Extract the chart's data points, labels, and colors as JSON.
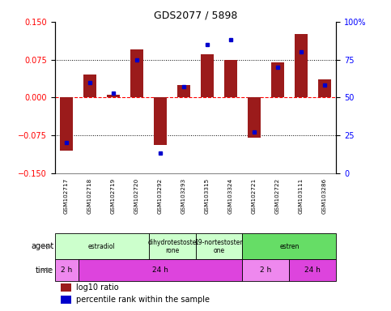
{
  "title": "GDS2077 / 5898",
  "samples": [
    "GSM102717",
    "GSM102718",
    "GSM102719",
    "GSM102720",
    "GSM103292",
    "GSM103293",
    "GSM103315",
    "GSM103324",
    "GSM102721",
    "GSM102722",
    "GSM103111",
    "GSM103286"
  ],
  "log10_ratio": [
    -0.105,
    0.045,
    0.005,
    0.095,
    -0.095,
    0.025,
    0.085,
    0.075,
    -0.08,
    0.07,
    0.125,
    0.035
  ],
  "percentile_rank": [
    20,
    60,
    53,
    75,
    13,
    57,
    85,
    88,
    27,
    70,
    80,
    58
  ],
  "ylim_left": [
    -0.15,
    0.15
  ],
  "ylim_right": [
    0,
    100
  ],
  "yticks_left": [
    -0.15,
    -0.075,
    0,
    0.075,
    0.15
  ],
  "yticks_right": [
    0,
    25,
    50,
    75,
    100
  ],
  "bar_color": "#9B1B1B",
  "dot_color": "#0000CC",
  "agent_data": [
    {
      "label": "estradiol",
      "color": "#CCFFCC",
      "start": 0,
      "end": 4
    },
    {
      "label": "dihydrotestoste\nrone",
      "color": "#CCFFCC",
      "start": 4,
      "end": 6
    },
    {
      "label": "19-nortestoster\none",
      "color": "#CCFFCC",
      "start": 6,
      "end": 8
    },
    {
      "label": "estren",
      "color": "#66DD66",
      "start": 8,
      "end": 12
    }
  ],
  "time_data": [
    {
      "label": "2 h",
      "color": "#EE88EE",
      "start": 0,
      "end": 1
    },
    {
      "label": "24 h",
      "color": "#DD44DD",
      "start": 1,
      "end": 8
    },
    {
      "label": "2 h",
      "color": "#EE88EE",
      "start": 8,
      "end": 10
    },
    {
      "label": "24 h",
      "color": "#DD44DD",
      "start": 10,
      "end": 12
    }
  ],
  "legend_bar_label": "log10 ratio",
  "legend_dot_label": "percentile rank within the sample",
  "bg_color": "#FFFFFF",
  "label_area_bg": "#C8C8C8",
  "label_area_border": "#888888"
}
